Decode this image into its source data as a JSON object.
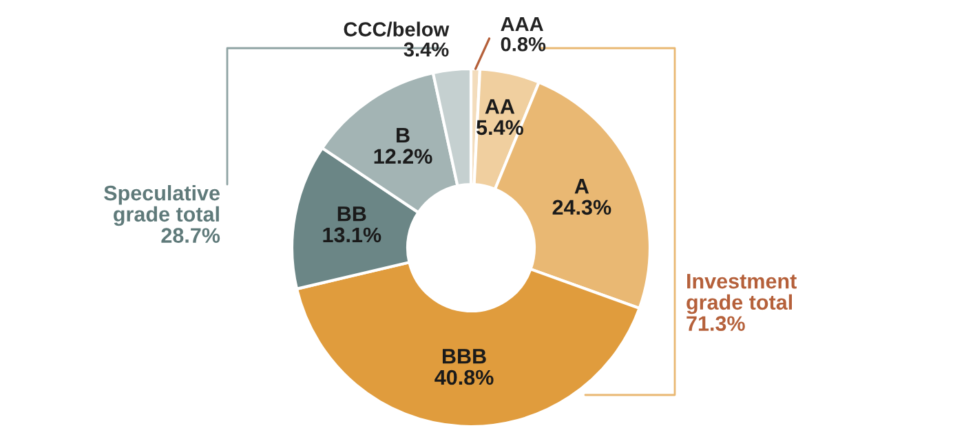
{
  "chart_data": {
    "type": "donut",
    "categories": [
      "AAA",
      "AA",
      "A",
      "BBB",
      "BB",
      "B",
      "CCC/below"
    ],
    "values": [
      0.8,
      5.4,
      24.3,
      40.8,
      13.1,
      12.2,
      3.4
    ],
    "value_labels": [
      "0.8%",
      "5.4%",
      "24.3%",
      "40.8%",
      "13.1%",
      "12.2%",
      "3.4%"
    ],
    "colors": [
      "#f3dcbc",
      "#f0cf9f",
      "#e9b873",
      "#e09c3d",
      "#6b8686",
      "#a3b4b4",
      "#c5d0d0"
    ],
    "annotations": [
      "Speculative\ngrade total\n28.7%",
      "Investment\ngrade total\n71.3%"
    ]
  }
}
